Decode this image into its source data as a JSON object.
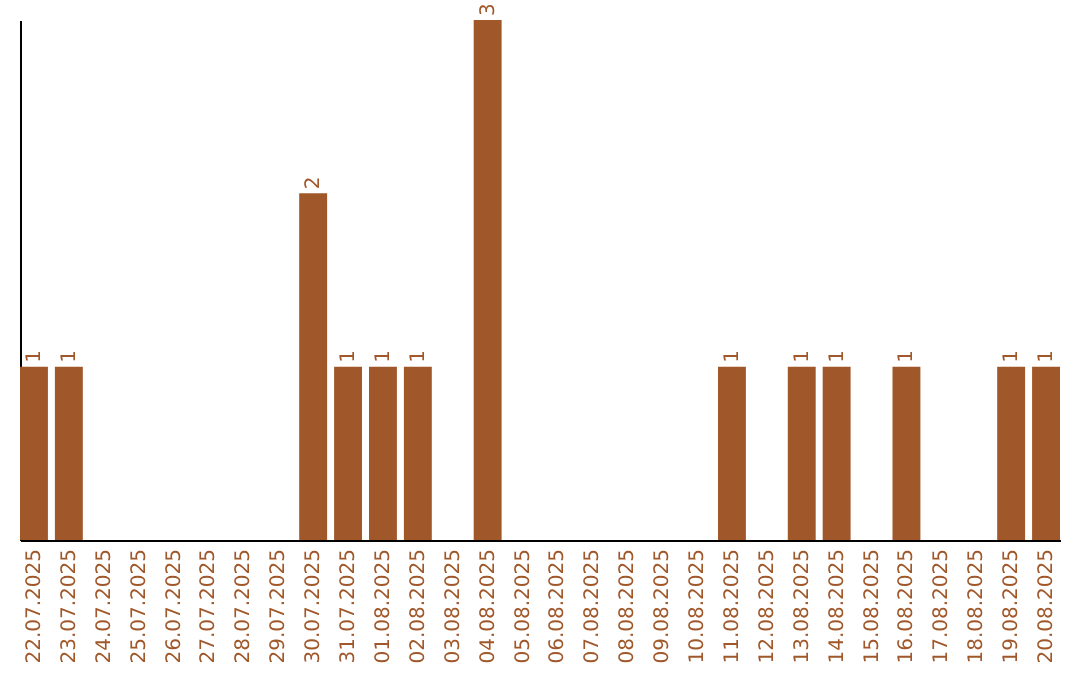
{
  "chart_data": {
    "type": "bar",
    "categories": [
      "22.07.2025",
      "23.07.2025",
      "24.07.2025",
      "25.07.2025",
      "26.07.2025",
      "27.07.2025",
      "28.07.2025",
      "29.07.2025",
      "30.07.2025",
      "31.07.2025",
      "01.08.2025",
      "02.08.2025",
      "03.08.2025",
      "04.08.2025",
      "05.08.2025",
      "06.08.2025",
      "07.08.2025",
      "08.08.2025",
      "09.08.2025",
      "10.08.2025",
      "11.08.2025",
      "12.08.2025",
      "13.08.2025",
      "14.08.2025",
      "15.08.2025",
      "16.08.2025",
      "17.08.2025",
      "18.08.2025",
      "19.08.2025",
      "20.08.2025"
    ],
    "values": [
      1,
      1,
      0,
      0,
      0,
      0,
      0,
      0,
      2,
      1,
      1,
      1,
      0,
      3,
      0,
      0,
      0,
      0,
      0,
      0,
      1,
      0,
      1,
      1,
      0,
      1,
      0,
      0,
      1,
      1
    ],
    "value_labels": [
      "1",
      "1",
      null,
      null,
      null,
      null,
      null,
      null,
      "2",
      "1",
      "1",
      "1",
      null,
      "3",
      null,
      null,
      null,
      null,
      null,
      null,
      "1",
      null,
      "1",
      "1",
      null,
      "1",
      null,
      null,
      "1",
      "1"
    ],
    "color": "#a0582a",
    "grid": false
  }
}
